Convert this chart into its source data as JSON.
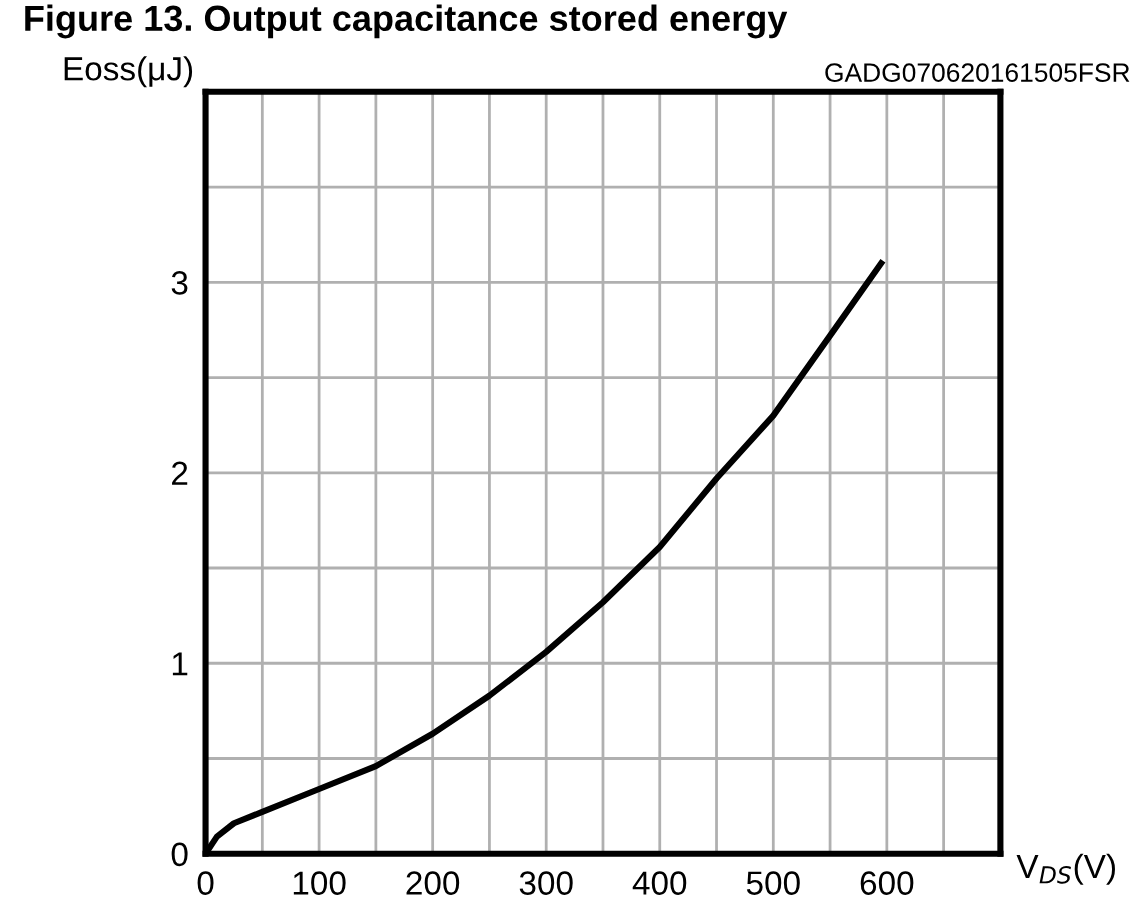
{
  "chart_data": {
    "type": "line",
    "title": "Figure 13. Output capacitance stored energy",
    "annotations": [
      "GADG070620161505FSR"
    ],
    "xlabel": "V$_{DS}$(V)",
    "ylabel": "Eoss(μJ)",
    "x": [
      0,
      10,
      25,
      50,
      100,
      150,
      200,
      250,
      300,
      350,
      400,
      450,
      500,
      550,
      595
    ],
    "series": [
      {
        "color": "#000000",
        "values": [
          0,
          0.09,
          0.16,
          0.22,
          0.34,
          0.46,
          0.63,
          0.83,
          1.06,
          1.32,
          1.61,
          1.97,
          2.3,
          2.72,
          3.1
        ]
      }
    ],
    "xlim": [
      0,
      700
    ],
    "ylim": [
      0,
      4
    ],
    "xticks": [
      0,
      {
        "value": 50,
        "label": null
      },
      100,
      {
        "value": 150,
        "label": null
      },
      200,
      {
        "value": 250,
        "label": null
      },
      300,
      {
        "value": 350,
        "label": null
      },
      400,
      {
        "value": 450,
        "label": null
      },
      500,
      {
        "value": 550,
        "label": null
      },
      600,
      {
        "value": 650,
        "label": null
      }
    ],
    "yticks": [
      0,
      {
        "value": 0.5,
        "label": null
      },
      1,
      {
        "value": 1.5,
        "label": null
      },
      2,
      {
        "value": 2.5,
        "label": null
      },
      3,
      {
        "value": 3.5,
        "label": null
      }
    ],
    "grid": true,
    "legend": false,
    "marker": "none",
    "line_style": "solid"
  }
}
